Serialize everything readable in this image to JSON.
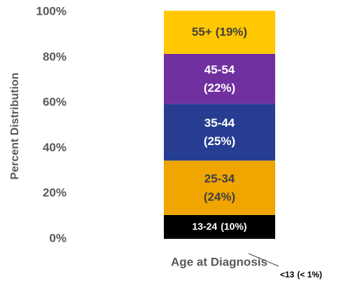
{
  "chart_data": {
    "type": "stacked_bar",
    "categories": [
      "Age at Diagnosis"
    ],
    "y_label": "Percent Distribution",
    "ylim": [
      0,
      100
    ],
    "yticks": [
      {
        "value": 0,
        "label": "0%"
      },
      {
        "value": 20,
        "label": "20%"
      },
      {
        "value": 40,
        "label": "40%"
      },
      {
        "value": 60,
        "label": "60%"
      },
      {
        "value": 80,
        "label": "80%"
      },
      {
        "value": 100,
        "label": "100%"
      }
    ],
    "series": [
      {
        "name": "<13",
        "color": "#000000",
        "text_color": "#000000",
        "values": [
          0.5
        ],
        "value_labels": [
          "(< 1%)"
        ]
      },
      {
        "name": "13-24",
        "color": "#000000",
        "text_color": "#ffffff",
        "values": [
          10
        ],
        "value_labels": [
          "(10%)"
        ]
      },
      {
        "name": "25-34",
        "color": "#f0a500",
        "text_color": "#404040",
        "values": [
          24
        ],
        "value_labels": [
          "(24%)"
        ]
      },
      {
        "name": "35-44",
        "color": "#263d91",
        "text_color": "#ffffff",
        "values": [
          25
        ],
        "value_labels": [
          "(25%)"
        ]
      },
      {
        "name": "45-54",
        "color": "#7030a0",
        "text_color": "#ffffff",
        "values": [
          22
        ],
        "value_labels": [
          "(22%)"
        ]
      },
      {
        "name": "55+",
        "color": "#ffc800",
        "text_color": "#404040",
        "values": [
          19
        ],
        "value_labels": [
          "(19%)"
        ]
      }
    ]
  }
}
